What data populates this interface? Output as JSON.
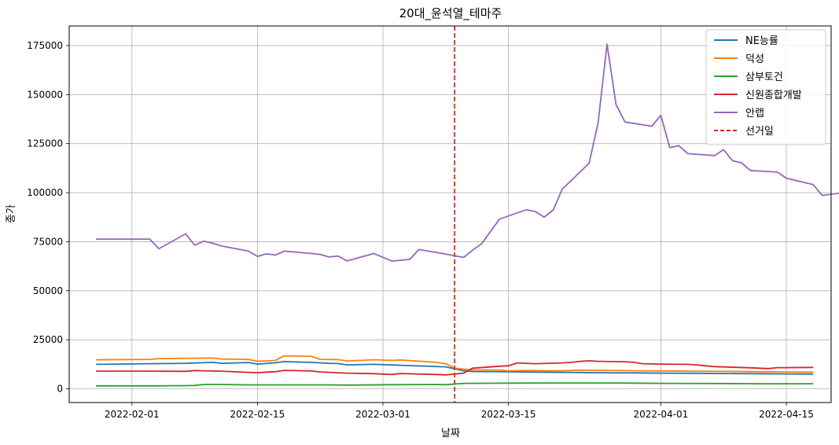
{
  "chart_data": {
    "type": "line",
    "title": "20대_윤석열_테마주",
    "xlabel": "날짜",
    "ylabel": "종가",
    "xlim": [
      "2022-01-25",
      "2022-04-20"
    ],
    "ylim": [
      -7000,
      185000
    ],
    "x_ticks": [
      "2022-02-01",
      "2022-02-15",
      "2022-03-01",
      "2022-03-15",
      "2022-04-01",
      "2022-04-15"
    ],
    "y_ticks": [
      0,
      25000,
      50000,
      75000,
      100000,
      125000,
      150000,
      175000
    ],
    "grid": true,
    "legend_position": "top-right",
    "series": [
      {
        "name": "NE능률",
        "color": "#1f77b4",
        "points": [
          [
            "2022-01-28",
            12500
          ],
          [
            "2022-02-03",
            12800
          ],
          [
            "2022-02-07",
            13000
          ],
          [
            "2022-02-10",
            13500
          ],
          [
            "2022-02-11",
            13000
          ],
          [
            "2022-02-14",
            13400
          ],
          [
            "2022-02-15",
            12600
          ],
          [
            "2022-02-17",
            13300
          ],
          [
            "2022-02-18",
            13900
          ],
          [
            "2022-02-21",
            13500
          ],
          [
            "2022-02-23",
            13000
          ],
          [
            "2022-02-24",
            12900
          ],
          [
            "2022-02-25",
            12200
          ],
          [
            "2022-02-28",
            12500
          ],
          [
            "2022-03-02",
            12200
          ],
          [
            "2022-03-03",
            12000
          ],
          [
            "2022-03-08",
            11200
          ],
          [
            "2022-03-10",
            9200
          ],
          [
            "2022-03-11",
            8800
          ],
          [
            "2022-03-15",
            8700
          ],
          [
            "2022-03-18",
            8500
          ],
          [
            "2022-03-21",
            8400
          ],
          [
            "2022-03-23",
            8300
          ],
          [
            "2022-03-25",
            8200
          ],
          [
            "2022-03-29",
            8100
          ],
          [
            "2022-04-01",
            8000
          ],
          [
            "2022-04-05",
            7900
          ],
          [
            "2022-04-08",
            7800
          ],
          [
            "2022-04-12",
            7700
          ],
          [
            "2022-04-15",
            7600
          ],
          [
            "2022-04-18",
            7500
          ]
        ]
      },
      {
        "name": "덕성",
        "color": "#ff7f0e",
        "points": [
          [
            "2022-01-28",
            14800
          ],
          [
            "2022-02-03",
            15000
          ],
          [
            "2022-02-04",
            15400
          ],
          [
            "2022-02-08",
            15600
          ],
          [
            "2022-02-10",
            15700
          ],
          [
            "2022-02-11",
            15200
          ],
          [
            "2022-02-14",
            15000
          ],
          [
            "2022-02-15",
            14000
          ],
          [
            "2022-02-17",
            14500
          ],
          [
            "2022-02-18",
            16800
          ],
          [
            "2022-02-21",
            16600
          ],
          [
            "2022-02-22",
            15000
          ],
          [
            "2022-02-24",
            14900
          ],
          [
            "2022-02-25",
            14200
          ],
          [
            "2022-02-28",
            14800
          ],
          [
            "2022-03-02",
            14500
          ],
          [
            "2022-03-03",
            14700
          ],
          [
            "2022-03-07",
            13500
          ],
          [
            "2022-03-08",
            12800
          ],
          [
            "2022-03-09",
            10500
          ],
          [
            "2022-03-11",
            9600
          ],
          [
            "2022-03-14",
            9600
          ],
          [
            "2022-03-15",
            9200
          ],
          [
            "2022-03-17",
            9300
          ],
          [
            "2022-03-21",
            9200
          ],
          [
            "2022-03-23",
            9500
          ],
          [
            "2022-03-25",
            9400
          ],
          [
            "2022-03-28",
            9300
          ],
          [
            "2022-03-29",
            9200
          ],
          [
            "2022-04-01",
            9100
          ],
          [
            "2022-04-05",
            9000
          ],
          [
            "2022-04-08",
            8900
          ],
          [
            "2022-04-12",
            8700
          ],
          [
            "2022-04-15",
            8600
          ],
          [
            "2022-04-18",
            8500
          ]
        ]
      },
      {
        "name": "삼부토건",
        "color": "#2ca02c",
        "points": [
          [
            "2022-01-28",
            1500
          ],
          [
            "2022-02-03",
            1500
          ],
          [
            "2022-02-07",
            1600
          ],
          [
            "2022-02-08",
            1700
          ],
          [
            "2022-02-09",
            2200
          ],
          [
            "2022-02-11",
            2200
          ],
          [
            "2022-02-14",
            2000
          ],
          [
            "2022-02-18",
            2000
          ],
          [
            "2022-02-23",
            2000
          ],
          [
            "2022-02-25",
            1900
          ],
          [
            "2022-03-02",
            2100
          ],
          [
            "2022-03-07",
            2200
          ],
          [
            "2022-03-08",
            2100
          ],
          [
            "2022-03-10",
            2800
          ],
          [
            "2022-03-15",
            2900
          ],
          [
            "2022-03-21",
            3000
          ],
          [
            "2022-03-25",
            3000
          ],
          [
            "2022-03-29",
            2900
          ],
          [
            "2022-04-01",
            2800
          ],
          [
            "2022-04-08",
            2700
          ],
          [
            "2022-04-12",
            2600
          ],
          [
            "2022-04-15",
            2600
          ],
          [
            "2022-04-18",
            2600
          ]
        ]
      },
      {
        "name": "신원종합개발",
        "color": "#d62728",
        "points": [
          [
            "2022-01-28",
            9000
          ],
          [
            "2022-02-03",
            9000
          ],
          [
            "2022-02-07",
            8900
          ],
          [
            "2022-02-08",
            9300
          ],
          [
            "2022-02-09",
            9200
          ],
          [
            "2022-02-11",
            9000
          ],
          [
            "2022-02-14",
            8400
          ],
          [
            "2022-02-15",
            8200
          ],
          [
            "2022-02-16",
            8500
          ],
          [
            "2022-02-17",
            8700
          ],
          [
            "2022-02-18",
            9400
          ],
          [
            "2022-02-21",
            9100
          ],
          [
            "2022-02-22",
            8600
          ],
          [
            "2022-02-24",
            8200
          ],
          [
            "2022-02-25",
            8000
          ],
          [
            "2022-02-28",
            7700
          ],
          [
            "2022-03-02",
            7300
          ],
          [
            "2022-03-03",
            7800
          ],
          [
            "2022-03-07",
            7300
          ],
          [
            "2022-03-08",
            7100
          ],
          [
            "2022-03-10",
            8000
          ],
          [
            "2022-03-11",
            10500
          ],
          [
            "2022-03-14",
            11500
          ],
          [
            "2022-03-15",
            11700
          ],
          [
            "2022-03-16",
            13200
          ],
          [
            "2022-03-18",
            12800
          ],
          [
            "2022-03-21",
            13200
          ],
          [
            "2022-03-22",
            13500
          ],
          [
            "2022-03-23",
            14000
          ],
          [
            "2022-03-24",
            14300
          ],
          [
            "2022-03-25",
            14000
          ],
          [
            "2022-03-28",
            13800
          ],
          [
            "2022-03-29",
            13500
          ],
          [
            "2022-03-30",
            12800
          ],
          [
            "2022-04-01",
            12600
          ],
          [
            "2022-04-04",
            12500
          ],
          [
            "2022-04-05",
            12200
          ],
          [
            "2022-04-06",
            11700
          ],
          [
            "2022-04-07",
            11300
          ],
          [
            "2022-04-11",
            10700
          ],
          [
            "2022-04-12",
            10500
          ],
          [
            "2022-04-13",
            10300
          ],
          [
            "2022-04-14",
            10800
          ],
          [
            "2022-04-15",
            10800
          ],
          [
            "2022-04-18",
            10900
          ]
        ]
      },
      {
        "name": "안랩",
        "color": "#9467bd",
        "points": [
          [
            "2022-01-28",
            76300
          ],
          [
            "2022-02-03",
            76300
          ],
          [
            "2022-02-04",
            71400
          ],
          [
            "2022-02-07",
            79000
          ],
          [
            "2022-02-08",
            73200
          ],
          [
            "2022-02-09",
            75300
          ],
          [
            "2022-02-10",
            74200
          ],
          [
            "2022-02-11",
            72800
          ],
          [
            "2022-02-14",
            70200
          ],
          [
            "2022-02-15",
            67500
          ],
          [
            "2022-02-16",
            68800
          ],
          [
            "2022-02-17",
            68200
          ],
          [
            "2022-02-18",
            70200
          ],
          [
            "2022-02-21",
            69000
          ],
          [
            "2022-02-22",
            68500
          ],
          [
            "2022-02-23",
            67200
          ],
          [
            "2022-02-24",
            67700
          ],
          [
            "2022-02-25",
            65200
          ],
          [
            "2022-02-28",
            69000
          ],
          [
            "2022-03-02",
            65100
          ],
          [
            "2022-03-04",
            66000
          ],
          [
            "2022-03-05",
            71000
          ],
          [
            "2022-03-07",
            69500
          ],
          [
            "2022-03-10",
            67000
          ],
          [
            "2022-03-11",
            70700
          ],
          [
            "2022-03-12",
            73900
          ],
          [
            "2022-03-14",
            86500
          ],
          [
            "2022-03-17",
            91300
          ],
          [
            "2022-03-18",
            90400
          ],
          [
            "2022-03-19",
            87500
          ],
          [
            "2022-03-20",
            91200
          ],
          [
            "2022-03-21",
            101800
          ],
          [
            "2022-03-24",
            115000
          ],
          [
            "2022-03-25",
            135500
          ],
          [
            "2022-03-26",
            175700
          ],
          [
            "2022-03-27",
            145000
          ],
          [
            "2022-03-28",
            136000
          ],
          [
            "2022-03-31",
            133900
          ],
          [
            "2022-04-01",
            139400
          ],
          [
            "2022-04-02",
            123000
          ],
          [
            "2022-04-03",
            124000
          ],
          [
            "2022-04-04",
            119900
          ],
          [
            "2022-04-07",
            118900
          ],
          [
            "2022-04-08",
            121900
          ],
          [
            "2022-04-09",
            116300
          ],
          [
            "2022-04-10",
            115200
          ],
          [
            "2022-04-11",
            111300
          ],
          [
            "2022-04-14",
            110500
          ],
          [
            "2022-04-15",
            107400
          ],
          [
            "2022-04-18",
            104100
          ],
          [
            "2022-04-19",
            98600
          ],
          [
            "2022-04-22",
            100400
          ]
        ]
      }
    ],
    "vline": {
      "name": "선거일",
      "x": "2022-03-09",
      "color": "#d62728",
      "style": "dashed"
    }
  }
}
